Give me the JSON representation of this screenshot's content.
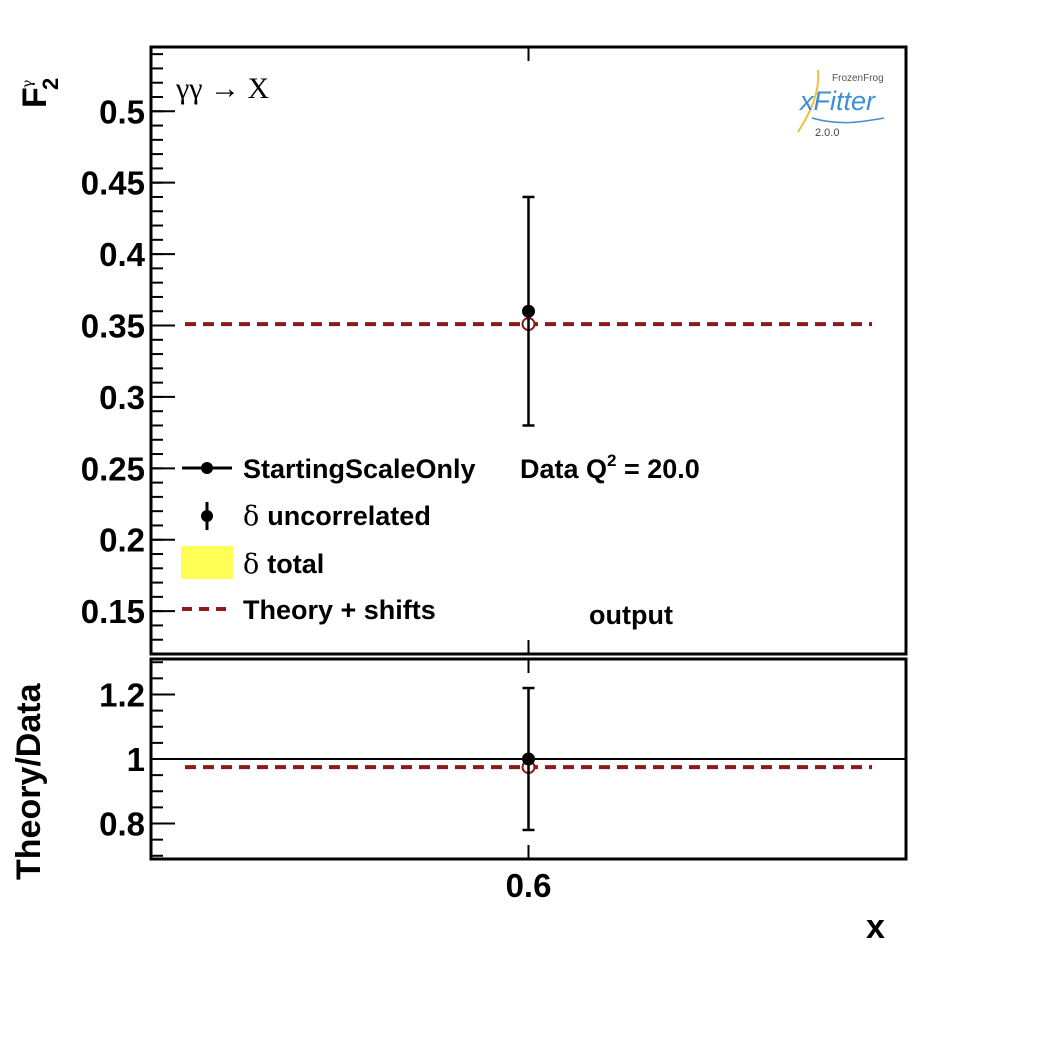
{
  "chart_data": [
    {
      "type": "scatter",
      "title": "",
      "process_label": "γγ → X",
      "ylabel": {
        "main": "F",
        "sub": "2",
        "sup": "γ"
      },
      "xlabel": "",
      "ylim": [
        0.12,
        0.545
      ],
      "yticks": [
        0.15,
        0.2,
        0.25,
        0.3,
        0.35,
        0.4,
        0.45,
        0.5
      ],
      "ytick_labels": [
        "0.15",
        "0.2",
        "0.25",
        "0.3",
        "0.35",
        "0.4",
        "0.45",
        "0.5"
      ],
      "xlim": [
        0.5,
        0.7
      ],
      "series": [
        {
          "name": "StartingScaleOnly",
          "kind": "data",
          "x": [
            0.6
          ],
          "y": [
            0.36
          ],
          "yerr_low": [
            0.28
          ],
          "yerr_high": [
            0.44
          ],
          "color": "#000000"
        },
        {
          "name": "Theory + shifts",
          "kind": "theory",
          "x": [
            0.6
          ],
          "y": [
            0.351
          ],
          "line_x": [
            0.509,
            0.691
          ],
          "color": "#8b1a1a"
        }
      ],
      "legend": {
        "placement": "bottom-left",
        "entries": [
          {
            "label": "StartingScaleOnly",
            "style": "line-marker"
          },
          {
            "label_greek": "δ",
            "label": "uncorrelated",
            "style": "marker-error"
          },
          {
            "label_greek": "δ",
            "label": "total",
            "style": "box",
            "color": "#ffff55"
          },
          {
            "label": "Theory + shifts",
            "style": "dashed",
            "color": "#8b1a1a"
          }
        ],
        "header": {
          "main": "Data Q",
          "sup": "2",
          "rest": " = 20.0"
        }
      },
      "annotation": "output",
      "logo": {
        "top": "FrozenFrog",
        "main": "xFitter",
        "version": "2.0.0"
      }
    },
    {
      "type": "scatter",
      "title": "",
      "ylabel": "Theory/Data",
      "xlabel": "x",
      "ylim": [
        0.69,
        1.31
      ],
      "yticks": [
        0.8,
        1.0,
        1.2
      ],
      "ytick_labels": [
        "0.8",
        "1",
        "1.2"
      ],
      "xlim": [
        0.5,
        0.7
      ],
      "xticks": [
        0.6
      ],
      "xtick_labels": [
        "0.6"
      ],
      "reference_line": 1.0,
      "series": [
        {
          "name": "StartingScaleOnly",
          "kind": "data",
          "x": [
            0.6
          ],
          "y": [
            1.0
          ],
          "yerr_low": [
            0.78
          ],
          "yerr_high": [
            1.22
          ],
          "color": "#000000"
        },
        {
          "name": "Theory + shifts",
          "kind": "theory",
          "x": [
            0.6
          ],
          "y": [
            0.975
          ],
          "line_x": [
            0.509,
            0.691
          ],
          "color": "#8b1a1a"
        }
      ]
    }
  ]
}
